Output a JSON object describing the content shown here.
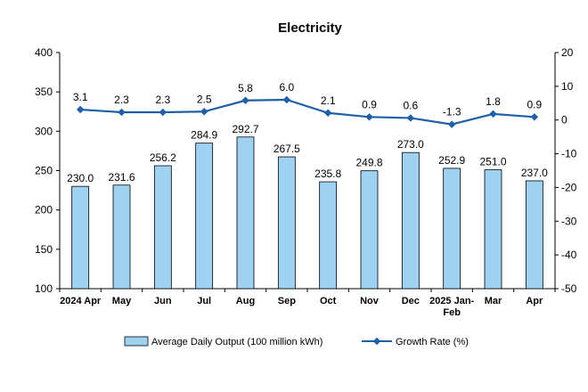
{
  "chart_data": {
    "type": "bar",
    "title": "Electricity",
    "categories": [
      "2024 Apr",
      "May",
      "Jun",
      "Jul",
      "Aug",
      "Sep",
      "Oct",
      "Nov",
      "Dec",
      "2025 Jan-Feb",
      "Mar",
      "Apr"
    ],
    "series": [
      {
        "name": "Average Daily Output (100 million kWh)",
        "type": "bar",
        "axis": "left",
        "color": "#9fd1f3",
        "values": [
          230.0,
          231.6,
          256.2,
          284.9,
          292.7,
          267.5,
          235.8,
          249.8,
          273.0,
          252.9,
          251.0,
          237.0
        ],
        "labels": [
          "230.0",
          "231.6",
          "256.2",
          "284.9",
          "292.7",
          "267.5",
          "235.8",
          "249.8",
          "273.0",
          "252.9",
          "251.0",
          "237.0"
        ]
      },
      {
        "name": "Growth Rate (%)",
        "type": "line",
        "axis": "right",
        "color": "#1f5fa8",
        "values": [
          3.1,
          2.3,
          2.3,
          2.5,
          5.8,
          6.0,
          2.1,
          0.9,
          0.6,
          -1.3,
          1.8,
          0.9
        ],
        "labels": [
          "3.1",
          "2.3",
          "2.3",
          "2.5",
          "5.8",
          "6.0",
          "2.1",
          "0.9",
          "0.6",
          "-1.3",
          "1.8",
          "0.9"
        ]
      }
    ],
    "ylim_left": [
      100,
      400
    ],
    "yticks_left": [
      "400",
      "350",
      "300",
      "250",
      "200",
      "150",
      "100"
    ],
    "ylim_right": [
      -50,
      20
    ],
    "yticks_right": [
      "20",
      "10",
      "0",
      "-10",
      "-20",
      "-30",
      "-40",
      "-50"
    ],
    "grid": false,
    "legend_position": "bottom"
  }
}
